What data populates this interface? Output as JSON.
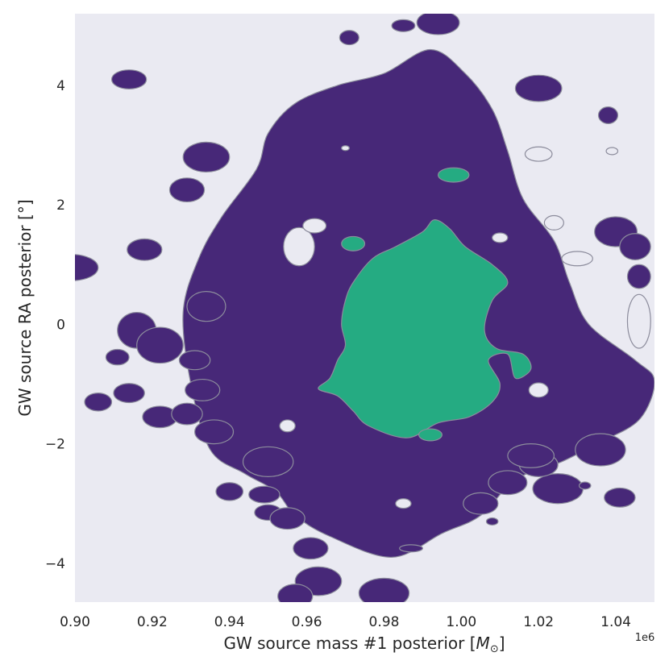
{
  "chart_data": {
    "type": "contour",
    "xlabel": "GW source mass #1 posterior [",
    "xlabel_unit": "M",
    "xlabel_unit_sub": "⊙",
    "xlabel_close": "]",
    "ylabel": "GW source RA posterior [°]",
    "x_offset_label": "1e6",
    "xlim": [
      0.9,
      1.05
    ],
    "ylim": [
      -4.65,
      5.2
    ],
    "x_ticks": [
      0.9,
      0.92,
      0.94,
      0.96,
      0.98,
      1.0,
      1.02,
      1.04
    ],
    "x_tick_labels": [
      "0.90",
      "0.92",
      "0.94",
      "0.96",
      "0.98",
      "1.00",
      "1.02",
      "1.04"
    ],
    "y_ticks": [
      4,
      2,
      0,
      -2,
      -4
    ],
    "y_tick_labels": [
      "4",
      "2",
      "0",
      "−2",
      "−4"
    ],
    "grid": false,
    "colors": {
      "background": "#eaeaf2",
      "outer_region": "#472878",
      "inner_region": "#25ab82",
      "contour_edge": "#8c8c9c"
    },
    "regions": [
      {
        "level": "outer",
        "color": "#472878",
        "main_outline": [
          [
            0.935,
            -2.1
          ],
          [
            0.93,
            -1.0
          ],
          [
            0.928,
            0.2
          ],
          [
            0.932,
            1.1
          ],
          [
            0.938,
            1.8
          ],
          [
            0.947,
            2.6
          ],
          [
            0.95,
            3.2
          ],
          [
            0.957,
            3.7
          ],
          [
            0.968,
            4.0
          ],
          [
            0.98,
            4.2
          ],
          [
            0.992,
            4.6
          ],
          [
            1.001,
            4.2
          ],
          [
            1.008,
            3.6
          ],
          [
            1.012,
            2.9
          ],
          [
            1.016,
            2.1
          ],
          [
            1.024,
            1.4
          ],
          [
            1.028,
            0.7
          ],
          [
            1.033,
            0.0
          ],
          [
            1.045,
            -0.6
          ],
          [
            1.05,
            -0.95
          ],
          [
            1.046,
            -1.6
          ],
          [
            1.035,
            -2.0
          ],
          [
            1.026,
            -2.3
          ],
          [
            1.014,
            -2.6
          ],
          [
            1.005,
            -3.2
          ],
          [
            0.995,
            -3.5
          ],
          [
            0.982,
            -3.9
          ],
          [
            0.966,
            -3.55
          ],
          [
            0.957,
            -3.2
          ],
          [
            0.952,
            -2.8
          ],
          [
            0.944,
            -2.5
          ]
        ],
        "islands": [
          [
            0.899,
            0.95,
            0.007,
            0.22
          ],
          [
            0.914,
            4.1,
            0.0045,
            0.16
          ],
          [
            0.971,
            4.8,
            0.0025,
            0.12
          ],
          [
            0.994,
            5.05,
            0.0055,
            0.2
          ],
          [
            0.985,
            5.0,
            0.003,
            0.1
          ],
          [
            1.02,
            3.95,
            0.006,
            0.22
          ],
          [
            1.038,
            3.5,
            0.0025,
            0.14
          ],
          [
            0.934,
            2.8,
            0.006,
            0.25
          ],
          [
            0.929,
            2.25,
            0.0045,
            0.2
          ],
          [
            0.918,
            1.25,
            0.0045,
            0.18
          ],
          [
            0.934,
            0.3,
            0.005,
            0.25
          ],
          [
            0.916,
            -0.1,
            0.005,
            0.3
          ],
          [
            0.922,
            -0.35,
            0.006,
            0.3
          ],
          [
            0.911,
            -0.55,
            0.003,
            0.13
          ],
          [
            0.906,
            -1.3,
            0.0035,
            0.15
          ],
          [
            0.914,
            -1.15,
            0.004,
            0.16
          ],
          [
            0.922,
            -1.55,
            0.0045,
            0.18
          ],
          [
            0.931,
            -0.6,
            0.004,
            0.16
          ],
          [
            0.933,
            -1.1,
            0.0045,
            0.18
          ],
          [
            0.929,
            -1.5,
            0.004,
            0.18
          ],
          [
            0.936,
            -1.8,
            0.005,
            0.2
          ],
          [
            0.95,
            -2.3,
            0.0065,
            0.25
          ],
          [
            0.94,
            -2.8,
            0.0035,
            0.15
          ],
          [
            0.949,
            -2.85,
            0.004,
            0.14
          ],
          [
            0.95,
            -3.15,
            0.0035,
            0.13
          ],
          [
            0.955,
            -3.25,
            0.0045,
            0.18
          ],
          [
            0.961,
            -3.75,
            0.0045,
            0.18
          ],
          [
            0.963,
            -4.3,
            0.006,
            0.24
          ],
          [
            0.98,
            -4.5,
            0.0065,
            0.25
          ],
          [
            0.957,
            -4.55,
            0.0045,
            0.2
          ],
          [
            1.025,
            -2.75,
            0.0065,
            0.25
          ],
          [
            1.02,
            -2.35,
            0.005,
            0.2
          ],
          [
            1.012,
            -2.65,
            0.005,
            0.2
          ],
          [
            1.018,
            -2.2,
            0.006,
            0.2
          ],
          [
            1.036,
            -2.1,
            0.0065,
            0.27
          ],
          [
            1.041,
            -2.9,
            0.004,
            0.16
          ],
          [
            1.04,
            1.55,
            0.0055,
            0.25
          ],
          [
            1.045,
            1.3,
            0.004,
            0.22
          ],
          [
            1.046,
            0.8,
            0.003,
            0.2
          ],
          [
            0.987,
            -3.75,
            0.003,
            0.06
          ],
          [
            1.032,
            -2.7,
            0.0015,
            0.06
          ],
          [
            1.008,
            -3.3,
            0.0015,
            0.06
          ],
          [
            1.005,
            -3.0,
            0.0045,
            0.18
          ]
        ],
        "holes": [
          [
            0.958,
            1.3,
            0.004,
            0.32
          ],
          [
            0.962,
            1.65,
            0.003,
            0.12
          ],
          [
            1.02,
            2.85,
            0.0035,
            0.12
          ],
          [
            1.03,
            1.1,
            0.004,
            0.12
          ],
          [
            1.024,
            1.7,
            0.0025,
            0.12
          ],
          [
            1.046,
            0.05,
            0.003,
            0.45
          ],
          [
            1.02,
            -1.1,
            0.0025,
            0.12
          ],
          [
            0.955,
            -1.7,
            0.002,
            0.1
          ],
          [
            0.985,
            -3.0,
            0.002,
            0.08
          ],
          [
            1.039,
            2.9,
            0.0015,
            0.06
          ],
          [
            0.97,
            2.95,
            0.001,
            0.04
          ],
          [
            1.01,
            1.45,
            0.002,
            0.08
          ]
        ]
      },
      {
        "level": "inner",
        "color": "#25ab82",
        "main_outline": [
          [
            0.963,
            -1.08
          ],
          [
            0.968,
            -1.2
          ],
          [
            0.972,
            -1.45
          ],
          [
            0.976,
            -1.7
          ],
          [
            0.986,
            -1.9
          ],
          [
            0.994,
            -1.65
          ],
          [
            1.002,
            -1.55
          ],
          [
            1.008,
            -1.3
          ],
          [
            1.01,
            -1.0
          ],
          [
            1.007,
            -0.6
          ],
          [
            1.012,
            -0.5
          ],
          [
            1.014,
            -0.9
          ],
          [
            1.018,
            -0.75
          ],
          [
            1.016,
            -0.5
          ],
          [
            1.009,
            -0.4
          ],
          [
            1.006,
            -0.1
          ],
          [
            1.008,
            0.4
          ],
          [
            1.012,
            0.7
          ],
          [
            1.008,
            1.0
          ],
          [
            1.001,
            1.3
          ],
          [
            0.997,
            1.6
          ],
          [
            0.993,
            1.75
          ],
          [
            0.99,
            1.55
          ],
          [
            0.983,
            1.3
          ],
          [
            0.977,
            1.1
          ],
          [
            0.972,
            0.7
          ],
          [
            0.97,
            0.4
          ],
          [
            0.969,
            0.0
          ],
          [
            0.97,
            -0.35
          ],
          [
            0.968,
            -0.6
          ],
          [
            0.966,
            -0.9
          ]
        ],
        "islands": [
          [
            0.972,
            1.35,
            0.003,
            0.12
          ],
          [
            0.998,
            2.5,
            0.004,
            0.12
          ],
          [
            0.992,
            -1.85,
            0.003,
            0.1
          ]
        ]
      }
    ]
  }
}
